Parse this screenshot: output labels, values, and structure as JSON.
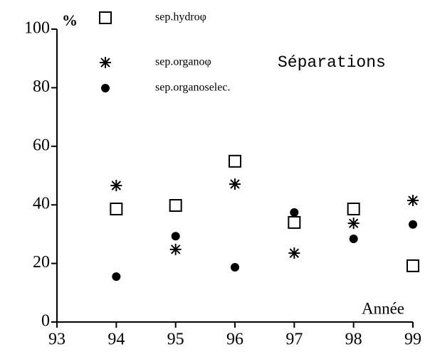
{
  "chart_data": {
    "type": "scatter",
    "title": "Séparations",
    "ylabel": "%",
    "xlabel": "Année",
    "x": [
      94,
      95,
      96,
      97,
      98,
      99
    ],
    "series": [
      {
        "name": "sep.hydroφ",
        "color": "#000000",
        "marker": "square",
        "values": [
          38.6,
          39.8,
          54.9,
          34,
          38.6,
          19.2
        ]
      },
      {
        "name": "sep.organoφ",
        "color": "#000000",
        "marker": "star",
        "values": [
          46.6,
          24.8,
          47.1,
          23.5,
          33.7,
          41.5
        ]
      },
      {
        "name": "sep.organoselec.",
        "color": "#000000",
        "marker": "circle",
        "values": [
          15.5,
          29.3,
          18.7,
          37.4,
          28.4,
          33.3
        ]
      }
    ],
    "xlim": [
      93,
      99
    ],
    "xticks": [
      93,
      94,
      95,
      96,
      97,
      98,
      99
    ],
    "ylim": [
      0,
      100
    ],
    "yticks": [
      0,
      20,
      40,
      60,
      80,
      100
    ],
    "grid": false
  }
}
